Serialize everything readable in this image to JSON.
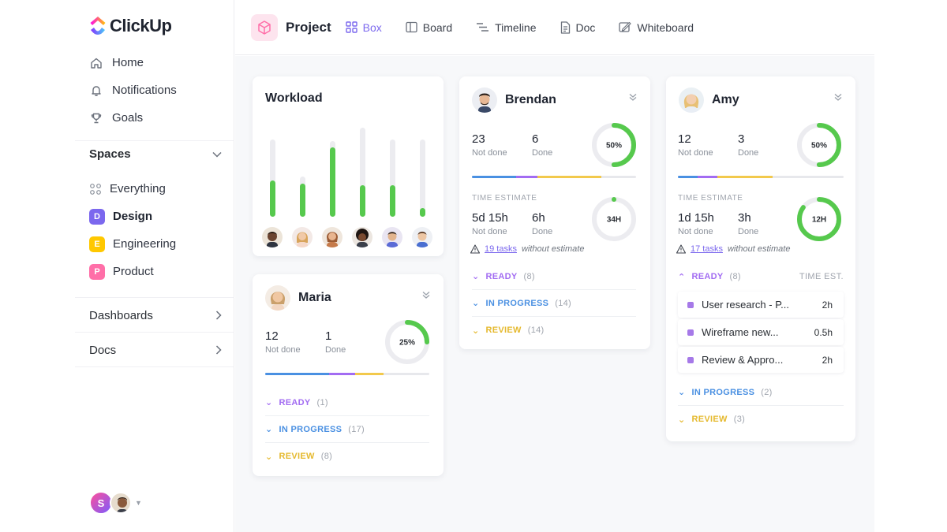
{
  "app": {
    "logo_text": "ClickUp"
  },
  "sidebar": {
    "nav": [
      {
        "label": "Home",
        "icon": "home-icon"
      },
      {
        "label": "Notifications",
        "icon": "bell-icon"
      },
      {
        "label": "Goals",
        "icon": "trophy-icon"
      }
    ],
    "spaces_label": "Spaces",
    "spaces": [
      {
        "label": "Everything",
        "badge": "",
        "color": ""
      },
      {
        "label": "Design",
        "badge": "D",
        "color": "#7b68ee"
      },
      {
        "label": "Engineering",
        "badge": "E",
        "color": "#ffc800"
      },
      {
        "label": "Product",
        "badge": "P",
        "color": "#ff6fa8"
      }
    ],
    "dashboards_label": "Dashboards",
    "docs_label": "Docs",
    "user_initial": "S"
  },
  "topbar": {
    "title": "Project",
    "tabs": [
      {
        "label": "Box",
        "icon": "grid-icon"
      },
      {
        "label": "Board",
        "icon": "board-icon"
      },
      {
        "label": "Timeline",
        "icon": "timeline-icon"
      },
      {
        "label": "Doc",
        "icon": "doc-icon"
      },
      {
        "label": "Whiteboard",
        "icon": "whiteboard-icon"
      }
    ]
  },
  "workload": {
    "title": "Workload",
    "bars": [
      0.52,
      0.48,
      1.0,
      0.46,
      0.45,
      0.12
    ]
  },
  "maria": {
    "name": "Maria",
    "not_done": "12",
    "done": "1",
    "not_done_label": "Not done",
    "done_label": "Done",
    "ring_label": "25%",
    "ring_value": 0.25,
    "statuses": [
      {
        "label": "READY",
        "count": "(1)",
        "color": "#a26cf2"
      },
      {
        "label": "IN PROGRESS",
        "count": "(17)",
        "color": "#4a90e2"
      },
      {
        "label": "REVIEW",
        "count": "(8)",
        "color": "#f2c94c"
      }
    ]
  },
  "brendan": {
    "name": "Brendan",
    "not_done": "23",
    "done": "6",
    "not_done_label": "Not done",
    "done_label": "Done",
    "ring_label": "50%",
    "ring_value": 0.5,
    "time_estimate_label": "TIME ESTIMATE",
    "est_not_done": "5d 15h",
    "est_done": "6h",
    "est_ring_label": "34H",
    "est_ring_value": 0.0,
    "warn_link": "19 tasks",
    "warn_text": "without estimate",
    "statuses": [
      {
        "label": "READY",
        "count": "(8)",
        "color": "#a26cf2"
      },
      {
        "label": "IN PROGRESS",
        "count": "(14)",
        "color": "#4a90e2"
      },
      {
        "label": "REVIEW",
        "count": "(14)",
        "color": "#f2c94c"
      }
    ]
  },
  "amy": {
    "name": "Amy",
    "not_done": "12",
    "done": "3",
    "not_done_label": "Not done",
    "done_label": "Done",
    "ring_label": "50%",
    "ring_value": 0.5,
    "time_estimate_label": "TIME ESTIMATE",
    "est_not_done": "1d 15h",
    "est_done": "3h",
    "est_ring_label": "12H",
    "est_ring_value": 0.85,
    "warn_link": "17 tasks",
    "warn_text": "without estimate",
    "ready_label": "READY",
    "ready_count": "(8)",
    "time_est_col": "TIME EST.",
    "tasks": [
      {
        "title": "User research - P...",
        "hours": "2h"
      },
      {
        "title": "Wireframe new...",
        "hours": "0.5h"
      },
      {
        "title": "Review & Appro...",
        "hours": "2h"
      }
    ],
    "statuses": [
      {
        "label": "IN PROGRESS",
        "count": "(2)",
        "color": "#4a90e2"
      },
      {
        "label": "REVIEW",
        "count": "(3)",
        "color": "#f2c94c"
      }
    ]
  },
  "colors": {
    "accent": "#7b68ee",
    "green": "#56c94d",
    "blue": "#4a90e2",
    "purple": "#a26cf2",
    "yellow": "#f2c94c"
  }
}
